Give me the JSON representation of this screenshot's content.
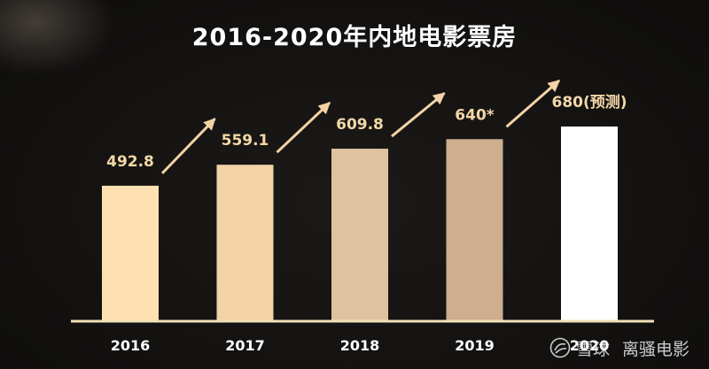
{
  "chart_data": {
    "type": "bar",
    "title": "2016-2020年内地电影票房",
    "categories": [
      "2016",
      "2017",
      "2018",
      "2019",
      "2020"
    ],
    "values": [
      492.8,
      559.1,
      609.8,
      640,
      680
    ],
    "value_labels": [
      "492.8",
      "559.1",
      "609.8",
      "640*",
      "680(预测)"
    ],
    "bar_colors": [
      "#FDE1B3",
      "#F3D2A5",
      "#DFC3A0",
      "#CDAE8E",
      "#FFFFFF"
    ],
    "arrow_color": "#F3D2A5",
    "baseline_color": "#F2E0B6",
    "axis_label_color": "#FFFFFF",
    "grid": false,
    "legend": "none"
  },
  "watermark": {
    "site": "雪球",
    "author": "离骚电影",
    "icon": "snowball-logo-icon"
  }
}
